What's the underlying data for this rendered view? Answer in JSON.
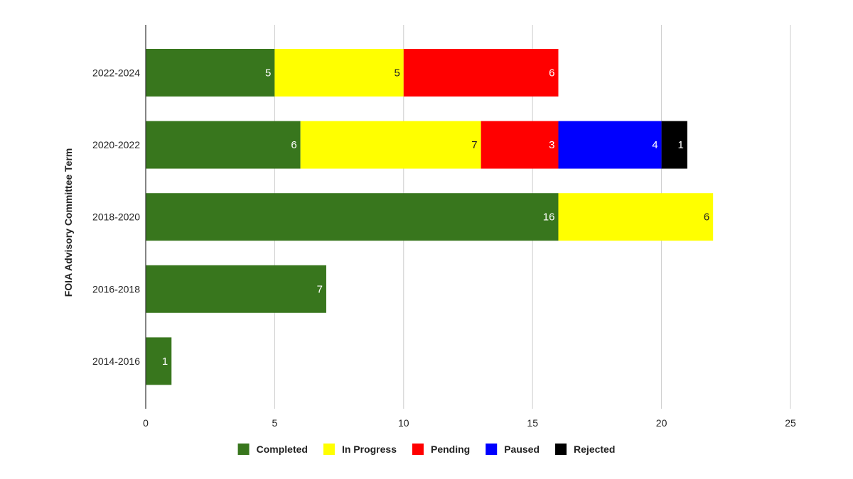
{
  "chart_data": {
    "type": "bar",
    "orientation": "horizontal",
    "stacked": true,
    "title": "",
    "xlabel": "",
    "ylabel": "FOIA Advisory Committee Term",
    "xlim": [
      0,
      25
    ],
    "xticks": [
      0,
      5,
      10,
      15,
      20,
      25
    ],
    "grid": true,
    "legend_position": "bottom",
    "categories": [
      "2022-2024",
      "2020-2022",
      "2018-2020",
      "2016-2018",
      "2014-2016"
    ],
    "series": [
      {
        "name": "Completed",
        "color": "#38761d",
        "label_color": "#ffffff",
        "values": [
          5,
          6,
          16,
          7,
          1
        ]
      },
      {
        "name": "In Progress",
        "color": "#ffff00",
        "label_color": "#222222",
        "values": [
          5,
          7,
          6,
          0,
          0
        ]
      },
      {
        "name": "Pending",
        "color": "#ff0000",
        "label_color": "#ffffff",
        "values": [
          6,
          3,
          0,
          0,
          0
        ]
      },
      {
        "name": "Paused",
        "color": "#0000ff",
        "label_color": "#ffffff",
        "values": [
          0,
          4,
          0,
          0,
          0
        ]
      },
      {
        "name": "Rejected",
        "color": "#000000",
        "label_color": "#ffffff",
        "values": [
          0,
          1,
          0,
          0,
          0
        ]
      }
    ]
  }
}
